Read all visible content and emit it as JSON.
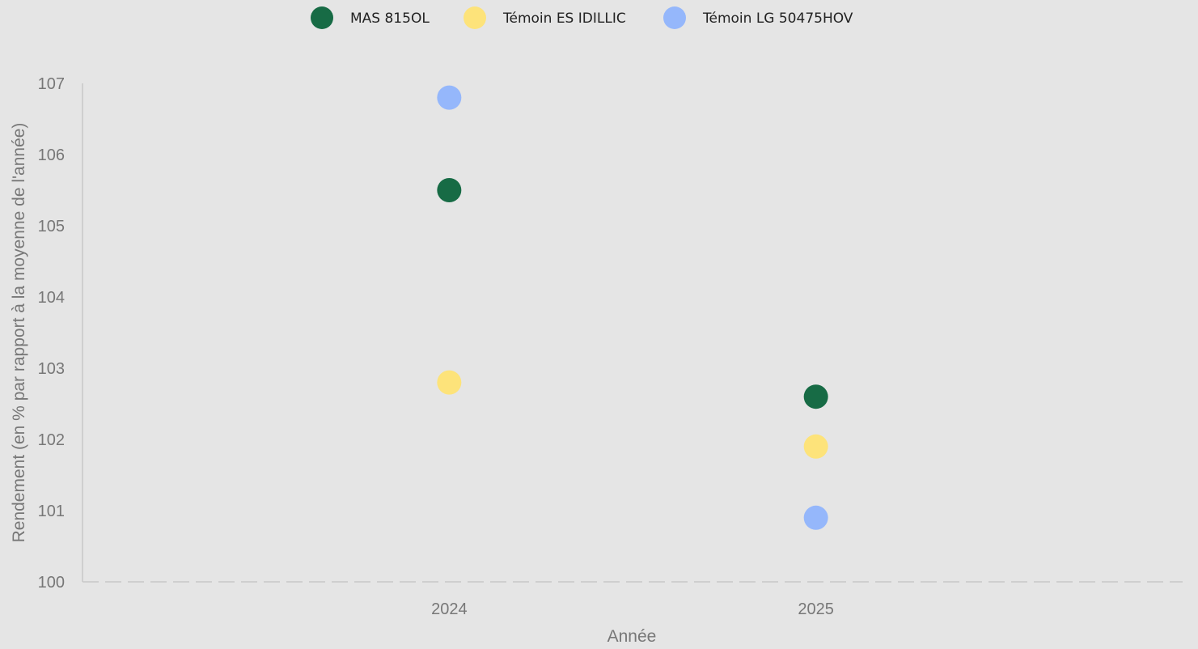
{
  "chart_data": {
    "type": "scatter",
    "title": "",
    "xlabel": "Année",
    "ylabel": "Rendement (en % par rapport à la moyenne de l'année)",
    "categories": [
      "2024",
      "2025"
    ],
    "ylim": [
      100,
      107
    ],
    "yticks": [
      "100",
      "101",
      "102",
      "103",
      "104",
      "105",
      "106",
      "107"
    ],
    "grid": false,
    "legend_position": "top-center",
    "series": [
      {
        "name": "MAS 815OL",
        "color": "#176b45",
        "values": [
          105.5,
          102.6
        ]
      },
      {
        "name": "Témoin ES IDILLIC",
        "color": "#fde37a",
        "values": [
          102.8,
          101.9
        ]
      },
      {
        "name": "Témoin LG 50475HOV",
        "color": "#95b7fb",
        "values": [
          106.8,
          100.9
        ]
      }
    ]
  }
}
